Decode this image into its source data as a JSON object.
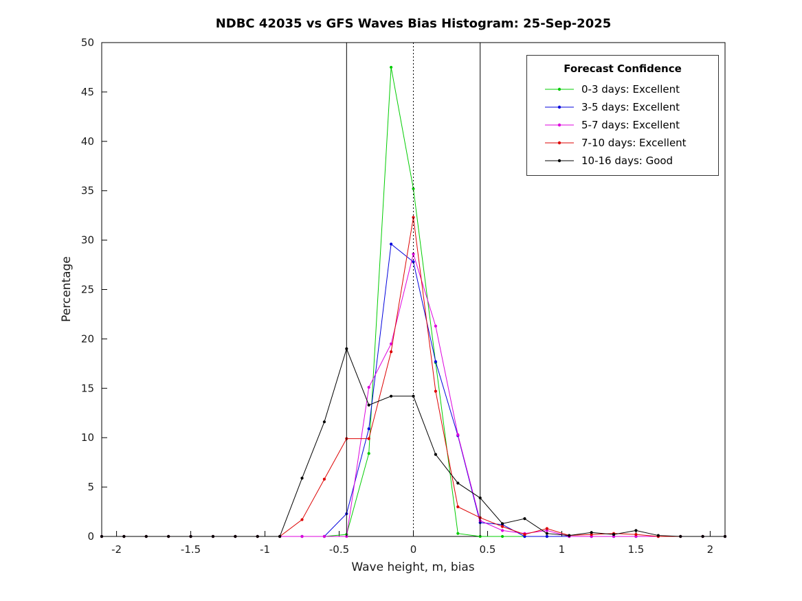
{
  "chart_data": {
    "type": "line",
    "title": "NDBC 42035 vs GFS Waves Bias Histogram: 25-Sep-2025",
    "xlabel": "Wave height, m, bias",
    "ylabel": "Percentage",
    "xlim": [
      -2.1,
      2.1
    ],
    "ylim": [
      0,
      50
    ],
    "xticks": [
      -2,
      -1.5,
      -1,
      -0.5,
      0,
      0.5,
      1,
      1.5,
      2
    ],
    "yticks": [
      0,
      5,
      10,
      15,
      20,
      25,
      30,
      35,
      40,
      45,
      50
    ],
    "grid": false,
    "legend_title": "Forecast Confidence",
    "legend_position": "top-right",
    "x": [
      -2.1,
      -1.95,
      -1.8,
      -1.65,
      -1.5,
      -1.35,
      -1.2,
      -1.05,
      -0.9,
      -0.75,
      -0.6,
      -0.45,
      -0.3,
      -0.15,
      0,
      0.15,
      0.3,
      0.45,
      0.6,
      0.75,
      0.9,
      1.05,
      1.2,
      1.35,
      1.5,
      1.65,
      1.8,
      1.95,
      2.1
    ],
    "series": [
      {
        "name": "0-3 days: Excellent",
        "color": "#00cc00",
        "values": [
          0,
          0,
          0,
          0,
          0,
          0,
          0,
          0,
          0,
          0,
          0,
          0.2,
          8.4,
          47.5,
          35.2,
          17.6,
          0.3,
          0,
          0,
          0,
          0,
          0,
          0,
          0,
          0,
          0,
          0,
          0,
          0
        ]
      },
      {
        "name": "3-5 days: Excellent",
        "color": "#0000dd",
        "values": [
          0,
          0,
          0,
          0,
          0,
          0,
          0,
          0,
          0,
          0,
          0,
          2.3,
          10.9,
          29.6,
          27.8,
          17.7,
          10.2,
          1.4,
          1.2,
          0,
          0,
          0,
          0,
          0,
          0,
          0,
          0,
          0,
          0
        ]
      },
      {
        "name": "5-7 days: Excellent",
        "color": "#dd00dd",
        "values": [
          0,
          0,
          0,
          0,
          0,
          0,
          0,
          0,
          0,
          0,
          0,
          0,
          15.1,
          19.5,
          28.6,
          21.3,
          10.3,
          1.6,
          0.6,
          0.3,
          0.6,
          0,
          0,
          0,
          0,
          0,
          0,
          0,
          0
        ]
      },
      {
        "name": "7-10 days: Excellent",
        "color": "#dd0000",
        "values": [
          0,
          0,
          0,
          0,
          0,
          0,
          0,
          0,
          0,
          1.7,
          5.8,
          9.9,
          9.9,
          18.7,
          32.3,
          14.7,
          3.0,
          1.9,
          1.0,
          0.2,
          0.8,
          0.1,
          0.2,
          0.3,
          0.2,
          0,
          0,
          0,
          0
        ]
      },
      {
        "name": "10-16 days: Good",
        "color": "#000000",
        "values": [
          0,
          0,
          0,
          0,
          0,
          0,
          0,
          0,
          0,
          5.9,
          11.6,
          19.0,
          13.3,
          14.2,
          14.2,
          8.3,
          5.4,
          3.9,
          1.3,
          1.8,
          0.3,
          0.1,
          0.4,
          0.2,
          0.6,
          0.1,
          0,
          0,
          0
        ]
      }
    ],
    "reference_lines": [
      {
        "type": "vertical",
        "x": -0.45,
        "style": "solid",
        "color": "#000000"
      },
      {
        "type": "vertical",
        "x": 0,
        "style": "dotted",
        "color": "#000000"
      },
      {
        "type": "vertical",
        "x": 0.45,
        "style": "solid",
        "color": "#000000"
      }
    ]
  }
}
